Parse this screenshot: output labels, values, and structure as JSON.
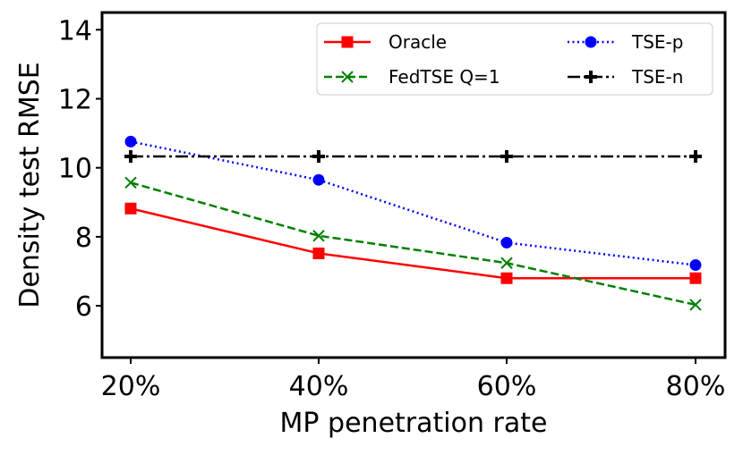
{
  "chart_data": {
    "type": "line",
    "xlabel": "MP penetration rate",
    "ylabel": "Density test RMSE",
    "categories": [
      "20%",
      "40%",
      "60%",
      "80%"
    ],
    "ylim": [
      4.5,
      14.5
    ],
    "yticks": [
      6,
      8,
      10,
      12,
      14
    ],
    "legend_position": "top-right",
    "grid": false,
    "series": [
      {
        "name": "Oracle",
        "color": "#ff0000",
        "dash": "solid",
        "marker": "square",
        "values": [
          8.82,
          7.52,
          6.8,
          6.8
        ]
      },
      {
        "name": "FedTSE Q=1",
        "color": "#008000",
        "dash": "dashed",
        "marker": "x",
        "values": [
          9.57,
          8.03,
          7.24,
          6.03
        ]
      },
      {
        "name": "TSE-p",
        "color": "#0000ff",
        "dash": "dotted",
        "marker": "circle",
        "values": [
          10.76,
          9.65,
          7.83,
          7.18
        ]
      },
      {
        "name": "TSE-n",
        "color": "#000000",
        "dash": "dashdot",
        "marker": "plus",
        "values": [
          10.33,
          10.33,
          10.33,
          10.33
        ]
      }
    ]
  }
}
